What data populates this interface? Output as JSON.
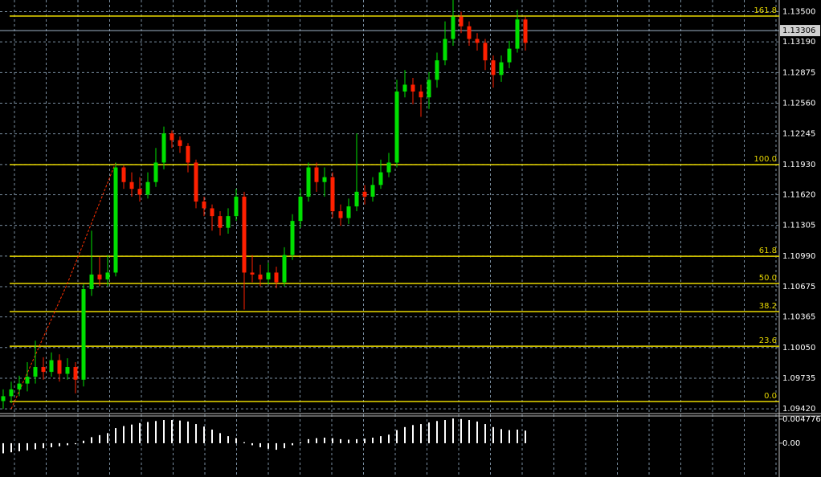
{
  "chart_data": [
    {
      "type": "candlestick",
      "up_color": "#00e000",
      "down_color": "#ff2000",
      "grid": true,
      "open": [
        1.095,
        1.0955,
        1.0962,
        1.0968,
        1.0975,
        1.0985,
        1.098,
        1.0992,
        1.0978,
        1.0985,
        1.0972,
        1.1065,
        1.108,
        1.1075,
        1.1082,
        1.119,
        1.1175,
        1.1168,
        1.1162,
        1.1175,
        1.1195,
        1.1225,
        1.1218,
        1.1212,
        1.1195,
        1.1155,
        1.1148,
        1.114,
        1.1128,
        1.114,
        1.116,
        1.1082,
        1.108,
        1.1075,
        1.1082,
        1.1072,
        1.11,
        1.1135,
        1.116,
        1.119,
        1.1175,
        1.118,
        1.1145,
        1.1138,
        1.115,
        1.1165,
        1.116,
        1.1172,
        1.1185,
        1.1195,
        1.1268,
        1.1275,
        1.1268,
        1.1262,
        1.128,
        1.13,
        1.1322,
        1.1345,
        1.1335,
        1.1322,
        1.1318,
        1.13,
        1.1285,
        1.1298,
        1.1312,
        1.1342
      ],
      "high": [
        1.0962,
        1.097,
        1.0976,
        1.099,
        1.1012,
        1.0995,
        1.1,
        1.0998,
        1.0994,
        1.099,
        1.107,
        1.1125,
        1.1098,
        1.11,
        1.1195,
        1.1192,
        1.1185,
        1.118,
        1.1185,
        1.121,
        1.1232,
        1.1228,
        1.1222,
        1.1215,
        1.1198,
        1.116,
        1.1152,
        1.1145,
        1.1148,
        1.1168,
        1.1165,
        1.11,
        1.109,
        1.1092,
        1.1088,
        1.1108,
        1.1142,
        1.1168,
        1.1195,
        1.1195,
        1.119,
        1.1185,
        1.1152,
        1.1158,
        1.1225,
        1.1172,
        1.118,
        1.1198,
        1.1205,
        1.128,
        1.129,
        1.1282,
        1.1275,
        1.1288,
        1.1308,
        1.134,
        1.1362,
        1.135,
        1.134,
        1.1328,
        1.1322,
        1.1305,
        1.1305,
        1.132,
        1.1352,
        1.1345
      ],
      "low": [
        1.0942,
        1.0948,
        1.0955,
        1.096,
        1.0968,
        1.0972,
        1.0975,
        1.097,
        1.0972,
        1.0958,
        1.0965,
        1.1058,
        1.1068,
        1.1068,
        1.1078,
        1.1168,
        1.116,
        1.1155,
        1.1158,
        1.117,
        1.1188,
        1.121,
        1.1205,
        1.1185,
        1.1148,
        1.114,
        1.1125,
        1.112,
        1.1122,
        1.1135,
        1.1044,
        1.1072,
        1.1068,
        1.107,
        1.1066,
        1.1068,
        1.1095,
        1.1128,
        1.1155,
        1.1165,
        1.116,
        1.1138,
        1.113,
        1.1132,
        1.1145,
        1.1152,
        1.1155,
        1.1168,
        1.118,
        1.119,
        1.1262,
        1.1255,
        1.1242,
        1.125,
        1.1272,
        1.1295,
        1.1315,
        1.1328,
        1.1315,
        1.131,
        1.129,
        1.1272,
        1.1278,
        1.1292,
        1.1308,
        1.131
      ],
      "close": [
        1.0955,
        1.0962,
        1.0968,
        1.0975,
        1.0985,
        1.098,
        1.0992,
        1.0978,
        1.0985,
        1.0972,
        1.1065,
        1.108,
        1.1075,
        1.1082,
        1.119,
        1.1175,
        1.1168,
        1.1162,
        1.1175,
        1.1195,
        1.1225,
        1.1218,
        1.1212,
        1.1195,
        1.1155,
        1.1148,
        1.114,
        1.1128,
        1.114,
        1.116,
        1.1082,
        1.108,
        1.1075,
        1.1082,
        1.1072,
        1.11,
        1.1135,
        1.116,
        1.119,
        1.1175,
        1.118,
        1.1145,
        1.1138,
        1.115,
        1.1165,
        1.116,
        1.1172,
        1.1185,
        1.1195,
        1.1268,
        1.1275,
        1.1268,
        1.1262,
        1.128,
        1.13,
        1.1322,
        1.1345,
        1.1335,
        1.1322,
        1.1318,
        1.13,
        1.1285,
        1.1298,
        1.1312,
        1.1342,
        1.1318
      ],
      "ylim": [
        1.0938,
        1.1362
      ],
      "yticks": [
        {
          "value": 1.135,
          "label": "1.13500"
        },
        {
          "value": 1.1319,
          "label": "1.13190"
        },
        {
          "value": 1.12875,
          "label": "1.12875"
        },
        {
          "value": 1.1256,
          "label": "1.12560"
        },
        {
          "value": 1.12245,
          "label": "1.12245"
        },
        {
          "value": 1.1193,
          "label": "1.11930"
        },
        {
          "value": 1.1162,
          "label": "1.11620"
        },
        {
          "value": 1.11305,
          "label": "1.11305"
        },
        {
          "value": 1.1099,
          "label": "1.10990"
        },
        {
          "value": 1.10675,
          "label": "1.10675"
        },
        {
          "value": 1.10365,
          "label": "1.10365"
        },
        {
          "value": 1.1005,
          "label": "1.10050"
        },
        {
          "value": 1.09735,
          "label": "1.09735"
        },
        {
          "value": 1.0942,
          "label": "1.09420"
        }
      ],
      "current_price": {
        "value": 1.13306,
        "label": "1.13306"
      },
      "fib_color": "#e8d800",
      "fib_levels": [
        {
          "label": "161.8",
          "value": 1.13455
        },
        {
          "label": "100.0",
          "value": 1.11929
        },
        {
          "label": "61.8",
          "value": 1.10988
        },
        {
          "label": "50.0",
          "value": 1.10708
        },
        {
          "label": "38.2",
          "value": 1.10419
        },
        {
          "label": "23.6",
          "value": 1.10064
        },
        {
          "label": "0.0",
          "value": 1.09495
        }
      ],
      "zigzag": {
        "x": [
          1,
          8,
          14
        ],
        "y": [
          1.0942,
          1.1071,
          1.1195
        ],
        "color": "#ff3000"
      }
    },
    {
      "type": "histogram",
      "color": "#ffffff",
      "values": [
        -0.002,
        -0.0018,
        -0.0016,
        -0.0014,
        -0.0012,
        -0.001,
        -0.0008,
        -0.0006,
        -0.0004,
        -0.0002,
        0.0005,
        0.0012,
        0.0016,
        0.002,
        0.003,
        0.0034,
        0.0037,
        0.004,
        0.0042,
        0.0044,
        0.0046,
        0.0046,
        0.0045,
        0.0043,
        0.0038,
        0.0033,
        0.0027,
        0.002,
        0.0014,
        0.001,
        0.0002,
        -0.0004,
        -0.0008,
        -0.0011,
        -0.0013,
        -0.001,
        -0.0004,
        0.0002,
        0.0008,
        0.001,
        0.0011,
        0.001,
        0.0008,
        0.0007,
        0.0008,
        0.0009,
        0.0011,
        0.0014,
        0.0017,
        0.0026,
        0.0032,
        0.0036,
        0.0038,
        0.0041,
        0.0044,
        0.0046,
        0.0049,
        0.0048,
        0.0046,
        0.0043,
        0.0038,
        0.0032,
        0.0028,
        0.0026,
        0.0027,
        0.0025
      ],
      "ylim": [
        -0.0067,
        0.0054
      ],
      "yticks": [
        {
          "value": 0.004776,
          "label": "0.004776"
        },
        {
          "value": 0,
          "label": "0.00"
        }
      ]
    }
  ]
}
